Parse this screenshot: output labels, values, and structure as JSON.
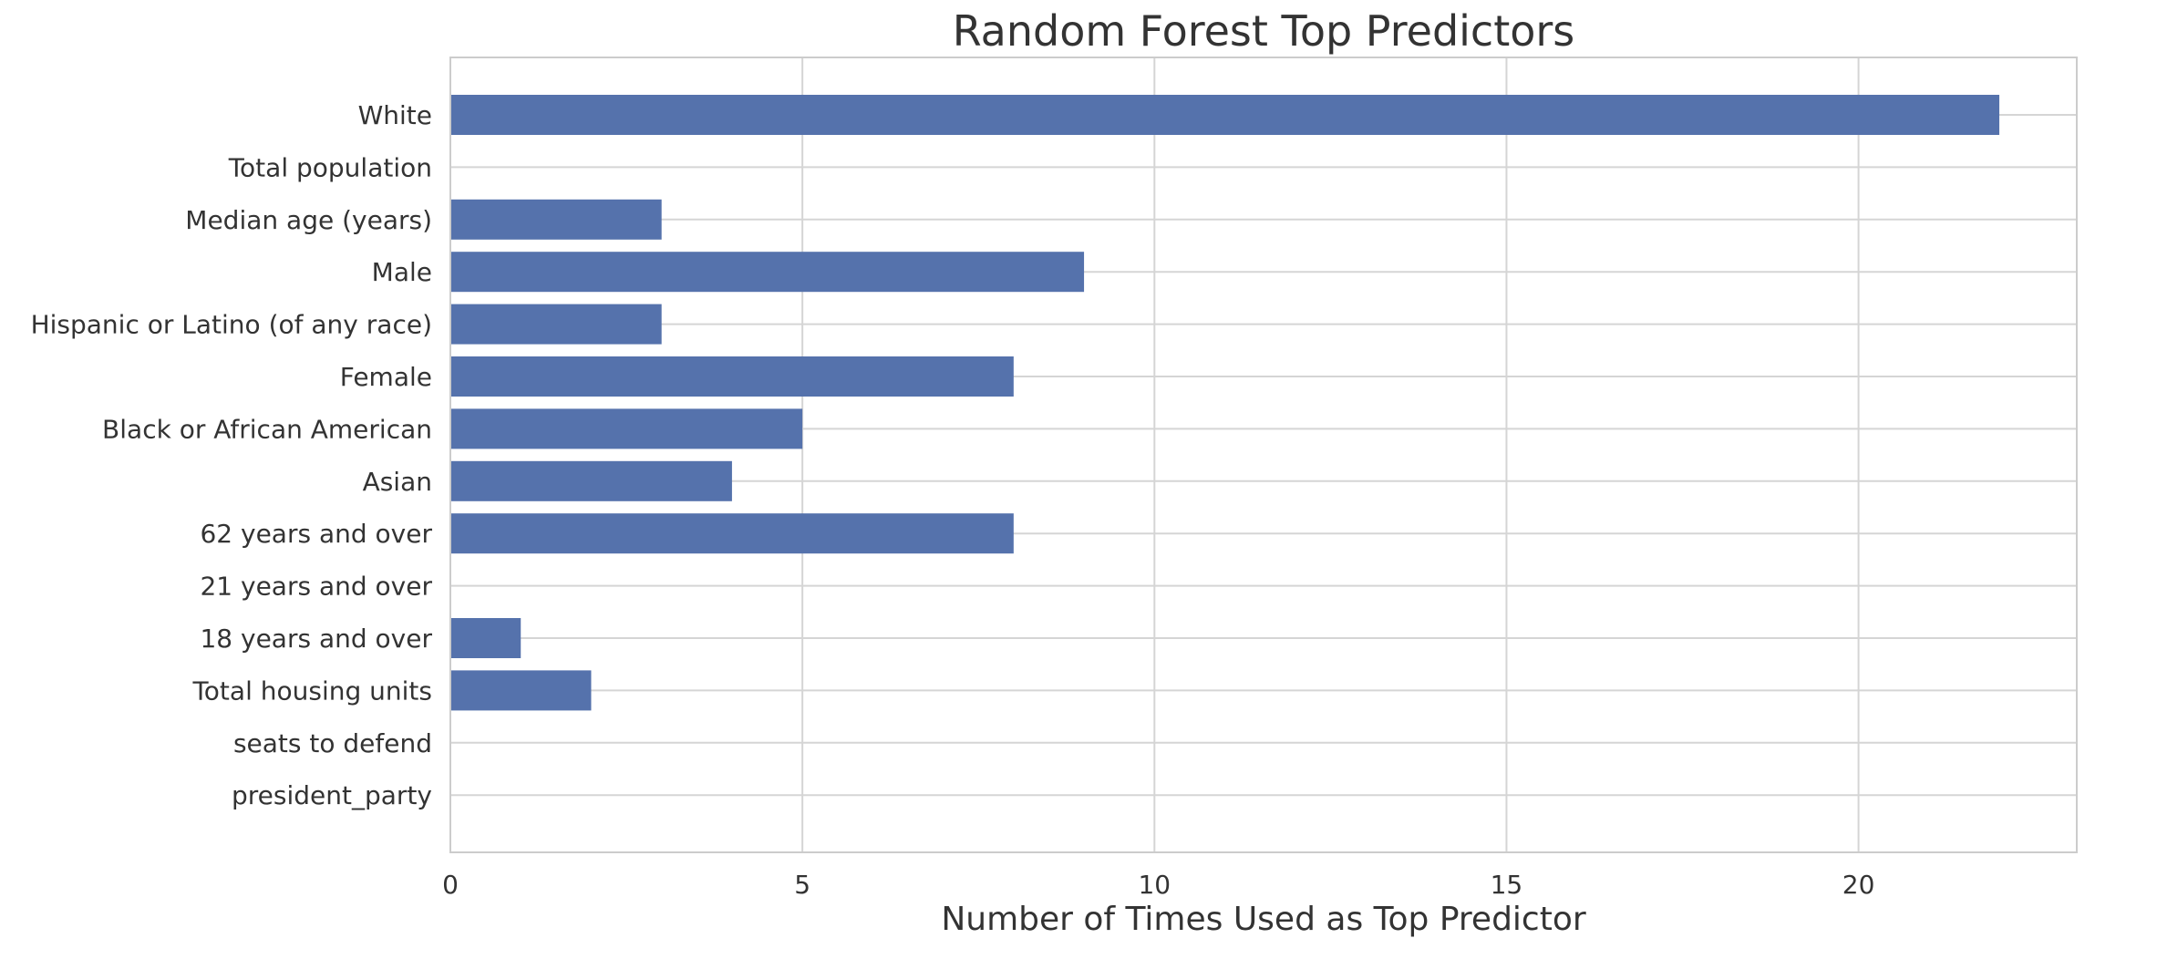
{
  "chart_data": {
    "type": "bar",
    "orientation": "horizontal",
    "title": "Random Forest Top Predictors",
    "xlabel": "Number of Times Used as Top Predictor",
    "ylabel": "",
    "categories": [
      "White",
      "Total population",
      "Median age (years)",
      "Male",
      "Hispanic or Latino (of any race)",
      "Female",
      "Black or African American",
      "Asian",
      "62 years and over",
      "21 years and over",
      "18 years and over",
      "Total housing units",
      "seats to defend",
      "president_party"
    ],
    "values": [
      22,
      0,
      3,
      9,
      3,
      8,
      5,
      4,
      8,
      0,
      1,
      2,
      0,
      0
    ],
    "xlim": [
      0,
      23.1
    ],
    "xticks": [
      0,
      5,
      10,
      15,
      20
    ],
    "grid": true,
    "bar_color": "#5572ac",
    "grid_color": "#d5d5d5"
  }
}
